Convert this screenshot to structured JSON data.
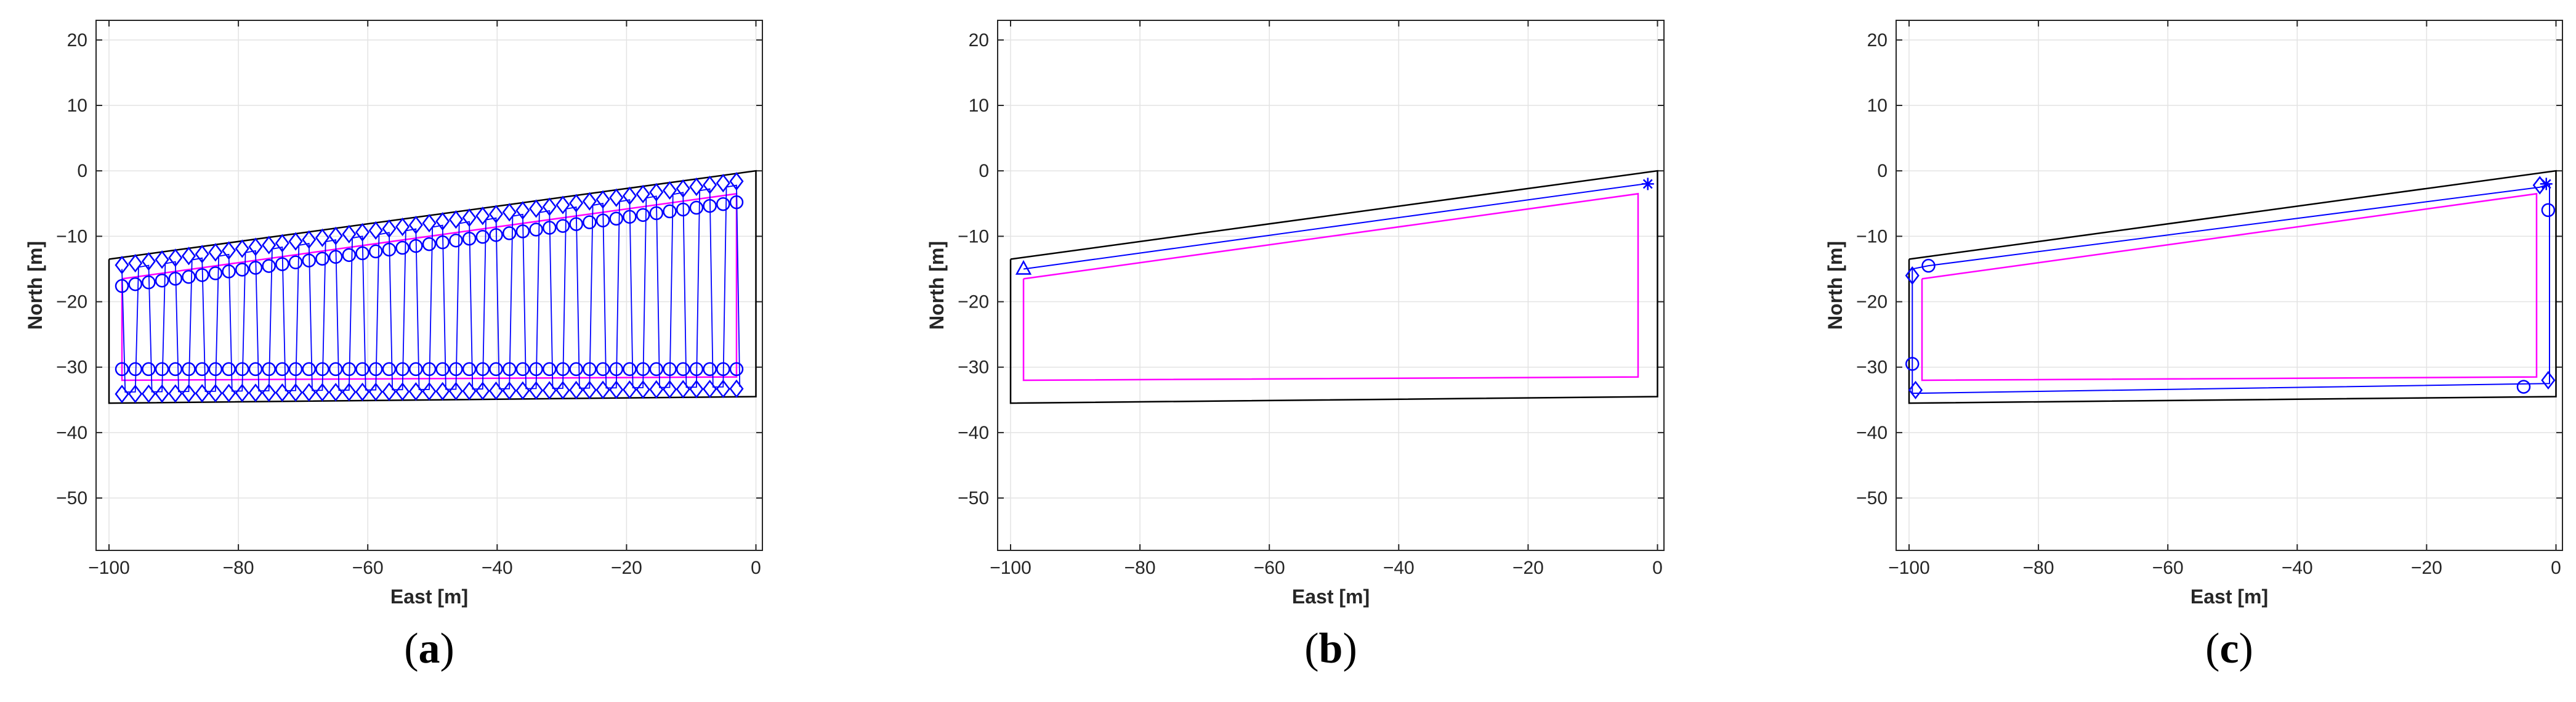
{
  "figure_colors": {
    "boundary": "#000000",
    "path": "#0000ff",
    "markers": "#0000ff",
    "inner_boundary": "#ff00ff",
    "grid": "#e3e3e3",
    "axes": "#262626"
  },
  "chart_data": [
    {
      "type": "line",
      "panel": "(a)",
      "panel_letter": "a",
      "xlabel": "East [m]",
      "ylabel": "North [m]",
      "xlim": [
        -102,
        1
      ],
      "ylim": [
        -58,
        23
      ],
      "xticks": [
        -100,
        -80,
        -60,
        -40,
        -20,
        0
      ],
      "yticks": [
        -50,
        -40,
        -30,
        -20,
        -10,
        0,
        10,
        20
      ],
      "grid": true,
      "field_boundary": [
        [
          -100,
          -13.5
        ],
        [
          0,
          0
        ],
        [
          0,
          -34.5
        ],
        [
          -100,
          -35.5
        ],
        [
          -100,
          -13.5
        ]
      ],
      "inner_boundary": [
        [
          -98,
          -16.5
        ],
        [
          -3,
          -3.5
        ],
        [
          -3,
          -31.5
        ],
        [
          -98,
          -32
        ],
        [
          -98,
          -16.5
        ]
      ],
      "sweep_path": {
        "x_start": -98,
        "x_end": -3,
        "passes": 47,
        "top_start": -15,
        "top_end": -2.2,
        "bottom_start": -33.8,
        "bottom_end": -33.0
      },
      "marker_rows": [
        {
          "marker": "diamond",
          "row": "top",
          "offset": 0.6
        },
        {
          "marker": "circle",
          "row": "top",
          "offset": -2.6
        },
        {
          "marker": "circle",
          "row": "bottom_inner",
          "y": -30.3
        },
        {
          "marker": "diamond",
          "row": "bottom",
          "offset": -0.3
        }
      ],
      "markers": []
    },
    {
      "type": "line",
      "panel": "(b)",
      "panel_letter": "b",
      "xlabel": "East [m]",
      "ylabel": "North [m]",
      "xlim": [
        -102,
        1
      ],
      "ylim": [
        -58,
        23
      ],
      "xticks": [
        -100,
        -80,
        -60,
        -40,
        -20,
        0
      ],
      "yticks": [
        -50,
        -40,
        -30,
        -20,
        -10,
        0,
        10,
        20
      ],
      "grid": true,
      "field_boundary": [
        [
          -100,
          -13.5
        ],
        [
          0,
          0
        ],
        [
          0,
          -34.5
        ],
        [
          -100,
          -35.5
        ],
        [
          -100,
          -13.5
        ]
      ],
      "inner_boundary": [
        [
          -98,
          -16.5
        ],
        [
          -3,
          -3.5
        ],
        [
          -3,
          -31.5
        ],
        [
          -98,
          -32
        ],
        [
          -98,
          -16.5
        ]
      ],
      "path": [
        [
          -98,
          -15
        ],
        [
          -2,
          -2
        ]
      ],
      "markers": [
        {
          "x": -98,
          "y": -15,
          "marker": "triangle"
        },
        {
          "x": -1.5,
          "y": -2,
          "marker": "asterisk"
        }
      ]
    },
    {
      "type": "line",
      "panel": "(c)",
      "panel_letter": "c",
      "xlabel": "East [m]",
      "ylabel": "North [m]",
      "xlim": [
        -102,
        1
      ],
      "ylim": [
        -58,
        23
      ],
      "xticks": [
        -100,
        -80,
        -60,
        -40,
        -20,
        0
      ],
      "yticks": [
        -50,
        -40,
        -30,
        -20,
        -10,
        0,
        10,
        20
      ],
      "grid": true,
      "field_boundary": [
        [
          -100,
          -13.5
        ],
        [
          0,
          0
        ],
        [
          0,
          -34.5
        ],
        [
          -100,
          -35.5
        ],
        [
          -100,
          -13.5
        ]
      ],
      "inner_boundary": [
        [
          -98,
          -16.5
        ],
        [
          -3,
          -3.5
        ],
        [
          -3,
          -31.5
        ],
        [
          -98,
          -32
        ],
        [
          -98,
          -16.5
        ]
      ],
      "path": [
        [
          -97,
          -14.5
        ],
        [
          -99.5,
          -15
        ],
        [
          -99.5,
          -34
        ],
        [
          -1,
          -32.5
        ],
        [
          -1,
          -2
        ],
        [
          -2.5,
          -2.5
        ],
        [
          -97,
          -14.5
        ]
      ],
      "markers": [
        {
          "x": -97,
          "y": -14.5,
          "marker": "circle"
        },
        {
          "x": -99.5,
          "y": -16,
          "marker": "diamond"
        },
        {
          "x": -99.5,
          "y": -29.5,
          "marker": "circle"
        },
        {
          "x": -99,
          "y": -33.5,
          "marker": "diamond"
        },
        {
          "x": -5,
          "y": -33,
          "marker": "circle"
        },
        {
          "x": -1.2,
          "y": -32,
          "marker": "diamond"
        },
        {
          "x": -1.2,
          "y": -6,
          "marker": "circle"
        },
        {
          "x": -1.5,
          "y": -2,
          "marker": "asterisk"
        },
        {
          "x": -2.5,
          "y": -2.2,
          "marker": "diamond"
        }
      ]
    }
  ]
}
